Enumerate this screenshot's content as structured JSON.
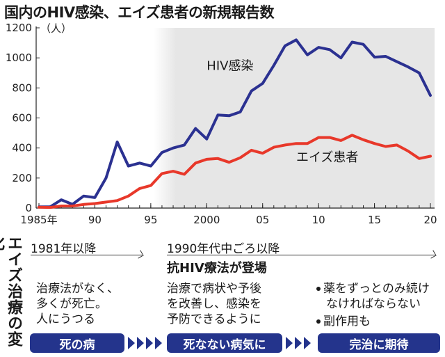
{
  "header": {
    "title": "国内のHIV感染、エイズ患者の新規報告数"
  },
  "chart_data": {
    "type": "line",
    "x": [
      1985,
      1986,
      1987,
      1988,
      1989,
      1990,
      1991,
      1992,
      1993,
      1994,
      1995,
      1996,
      1997,
      1998,
      1999,
      2000,
      2001,
      2002,
      2003,
      2004,
      2005,
      2006,
      2007,
      2008,
      2009,
      2010,
      2011,
      2012,
      2013,
      2014,
      2015,
      2016,
      2017,
      2018,
      2019,
      2020
    ],
    "series": [
      {
        "name": "HIV感染",
        "color": "#2b3191",
        "values": [
          8,
          8,
          55,
          25,
          80,
          70,
          200,
          440,
          280,
          300,
          280,
          370,
          400,
          420,
          530,
          460,
          620,
          615,
          640,
          780,
          830,
          950,
          1080,
          1120,
          1020,
          1070,
          1055,
          1000,
          1105,
          1090,
          1005,
          1010,
          975,
          940,
          900,
          750
        ]
      },
      {
        "name": "エイズ患者",
        "color": "#e8382a",
        "values": [
          6,
          4,
          14,
          14,
          24,
          30,
          40,
          50,
          80,
          130,
          150,
          230,
          245,
          225,
          300,
          325,
          330,
          305,
          335,
          385,
          365,
          405,
          420,
          430,
          430,
          470,
          470,
          450,
          485,
          455,
          430,
          410,
          420,
          380,
          330,
          345
        ]
      }
    ],
    "ylim": [
      0,
      1200
    ],
    "yticks": [
      "0",
      "200",
      "400",
      "600",
      "800",
      "1000",
      "1200"
    ],
    "ytick_values": [
      0,
      200,
      400,
      600,
      800,
      1000,
      1200
    ],
    "ylabel": "（人）",
    "xtick_labels": [
      "1985年",
      "90",
      "95",
      "2000",
      "05",
      "10",
      "15",
      "20"
    ],
    "xtick_values": [
      1985,
      1990,
      1995,
      2000,
      2005,
      2010,
      2015,
      2020
    ],
    "shaded_from": 1996,
    "shade_color": "#e6e6e6"
  },
  "treatment": {
    "side_title": "エイズ治療の変化",
    "era1": {
      "label": "1981年以降",
      "desc": "治療法がなく、\n多くが死亡。\n人にうつる",
      "stage": "死の病"
    },
    "era2": {
      "label": "1990年代中ごろ以降",
      "drug": "抗HIV療法が登場",
      "desc": "治療で病状や予後\nを改善し、感染を\n予防できるように",
      "stage": "死なない病気に"
    },
    "era3": {
      "bullet1": "薬をずっとのみ続け",
      "bullet1_cont": "なければならない",
      "bullet2": "副作用も",
      "stage": "完治に期待"
    },
    "stage_color": "#24348c"
  }
}
